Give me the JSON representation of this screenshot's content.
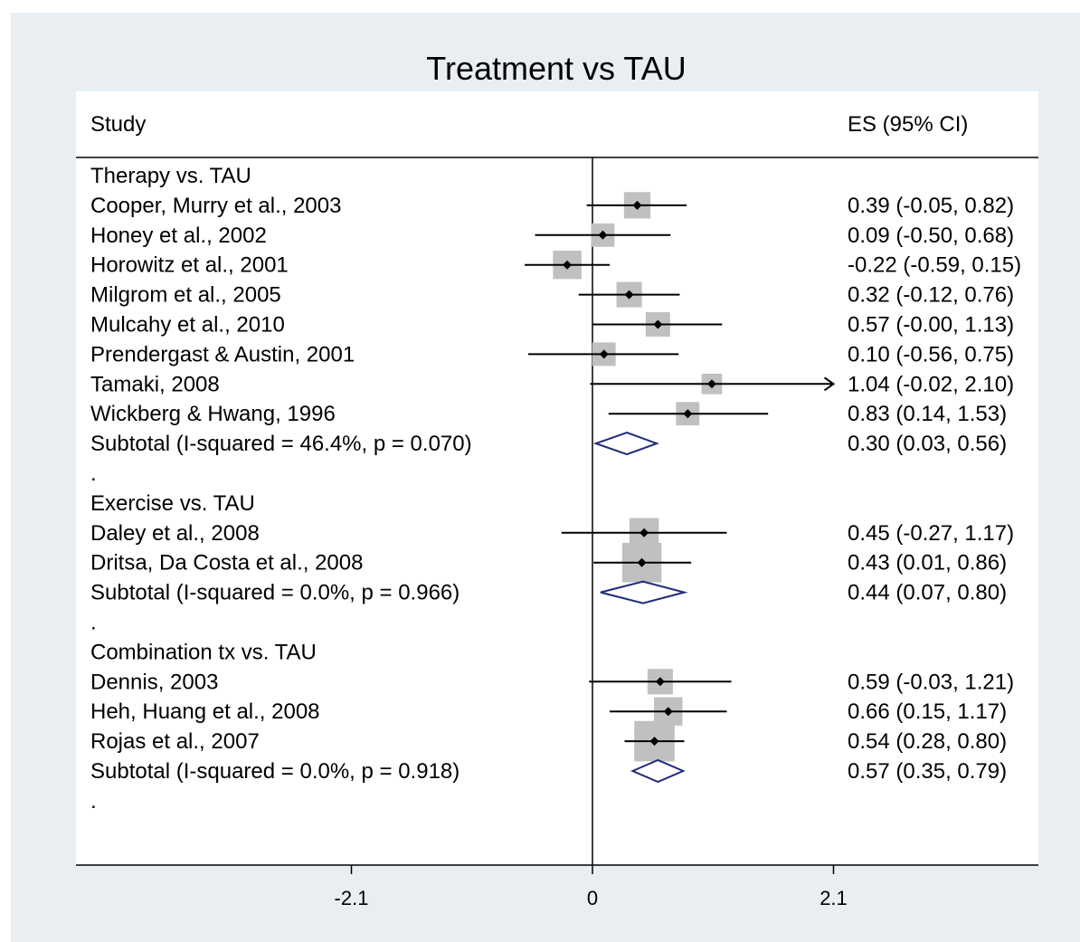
{
  "chart_data": {
    "type": "forest",
    "title": "Treatment vs TAU",
    "header": {
      "left": "Study",
      "right": "ES (95% CI)"
    },
    "xticks": [
      -2.1,
      0,
      2.1
    ],
    "xtick_labels": [
      "-2.1",
      "0",
      "2.1"
    ],
    "colors": {
      "background": "#e9eef2",
      "plot": "#ffffff",
      "box": "#c0c0c0",
      "diamond": "#1f2a7a",
      "line": "#000000"
    },
    "rows": [
      {
        "kind": "header",
        "label": "Therapy vs. TAU"
      },
      {
        "kind": "study",
        "label": "Cooper, Murry et al., 2003",
        "es": 0.39,
        "lo": -0.05,
        "hi": 0.82,
        "weight": 0.6,
        "text": "0.39 (-0.05, 0.82)"
      },
      {
        "kind": "study",
        "label": "Honey et al., 2002",
        "es": 0.09,
        "lo": -0.5,
        "hi": 0.68,
        "weight": 0.45,
        "text": "0.09 (-0.50, 0.68)"
      },
      {
        "kind": "study",
        "label": "Horowitz et al., 2001",
        "es": -0.22,
        "lo": -0.59,
        "hi": 0.15,
        "weight": 0.7,
        "text": "-0.22 (-0.59, 0.15)"
      },
      {
        "kind": "study",
        "label": "Milgrom et al., 2005",
        "es": 0.32,
        "lo": -0.12,
        "hi": 0.76,
        "weight": 0.55,
        "text": "0.32 (-0.12, 0.76)"
      },
      {
        "kind": "study",
        "label": "Mulcahy et al., 2010",
        "es": 0.57,
        "lo": -0.0,
        "hi": 1.13,
        "weight": 0.5,
        "text": "0.57 (-0.00, 1.13)"
      },
      {
        "kind": "study",
        "label": "Prendergast & Austin, 2001",
        "es": 0.1,
        "lo": -0.56,
        "hi": 0.75,
        "weight": 0.45,
        "text": "0.10 (-0.56, 0.75)"
      },
      {
        "kind": "study",
        "label": "Tamaki, 2008",
        "es": 1.04,
        "lo": -0.02,
        "hi": 2.1,
        "weight": 0.3,
        "arrow": true,
        "text": "1.04 (-0.02, 2.10)"
      },
      {
        "kind": "study",
        "label": "Wickberg & Hwang, 1996",
        "es": 0.83,
        "lo": 0.14,
        "hi": 1.53,
        "weight": 0.45,
        "text": "0.83 (0.14, 1.53)"
      },
      {
        "kind": "subtotal",
        "label": "Subtotal  (I-squared = 46.4%, p = 0.070)",
        "es": 0.3,
        "lo": 0.03,
        "hi": 0.56,
        "text": "0.30 (0.03, 0.56)"
      },
      {
        "kind": "blank",
        "label": "."
      },
      {
        "kind": "header",
        "label": "Exercise vs. TAU"
      },
      {
        "kind": "study",
        "label": "Daley et al., 2008",
        "es": 0.45,
        "lo": -0.27,
        "hi": 1.17,
        "weight": 0.75,
        "text": "0.45 (-0.27, 1.17)"
      },
      {
        "kind": "study",
        "label": "Dritsa, Da Costa et al., 2008",
        "es": 0.43,
        "lo": 0.01,
        "hi": 0.86,
        "weight": 1.25,
        "text": "0.43 (0.01, 0.86)"
      },
      {
        "kind": "subtotal",
        "label": "Subtotal  (I-squared = 0.0%, p = 0.966)",
        "es": 0.44,
        "lo": 0.07,
        "hi": 0.8,
        "text": "0.44 (0.07, 0.80)"
      },
      {
        "kind": "blank",
        "label": "."
      },
      {
        "kind": "header",
        "label": "Combination tx vs. TAU"
      },
      {
        "kind": "study",
        "label": "Dennis, 2003",
        "es": 0.59,
        "lo": -0.03,
        "hi": 1.21,
        "weight": 0.55,
        "text": "0.59 (-0.03, 1.21)"
      },
      {
        "kind": "study",
        "label": "Heh, Huang et al., 2008",
        "es": 0.66,
        "lo": 0.15,
        "hi": 1.17,
        "weight": 0.7,
        "text": "0.66 (0.15, 1.17)"
      },
      {
        "kind": "study",
        "label": "Rojas et al., 2007",
        "es": 0.54,
        "lo": 0.28,
        "hi": 0.8,
        "weight": 1.3,
        "text": "0.54 (0.28, 0.80)"
      },
      {
        "kind": "subtotal",
        "label": "Subtotal  (I-squared = 0.0%, p = 0.918)",
        "es": 0.57,
        "lo": 0.35,
        "hi": 0.79,
        "text": "0.57 (0.35, 0.79)"
      },
      {
        "kind": "blank",
        "label": "."
      }
    ]
  }
}
